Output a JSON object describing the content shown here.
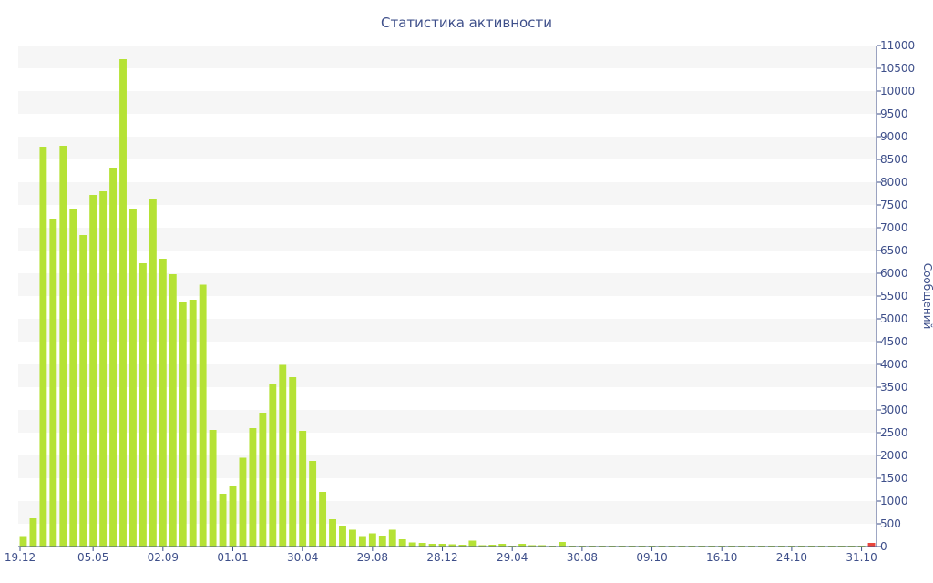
{
  "chart_data": {
    "type": "bar",
    "title": "Статистика активности",
    "xlabel": "",
    "ylabel": "Сообщений",
    "ylim": [
      0,
      11000
    ],
    "y_ticks": [
      0,
      500,
      1000,
      1500,
      2000,
      2500,
      3000,
      3500,
      4000,
      4500,
      5000,
      5500,
      6000,
      6500,
      7000,
      7500,
      8000,
      8500,
      9000,
      9500,
      10000,
      10500,
      11000
    ],
    "x_ticks": [
      {
        "label": "19.12",
        "index": 0
      },
      {
        "label": "05.05",
        "index": 7
      },
      {
        "label": "02.09",
        "index": 14
      },
      {
        "label": "01.01",
        "index": 21
      },
      {
        "label": "30.04",
        "index": 28
      },
      {
        "label": "29.08",
        "index": 35
      },
      {
        "label": "28.12",
        "index": 42
      },
      {
        "label": "29.04",
        "index": 49
      },
      {
        "label": "30.08",
        "index": 56
      },
      {
        "label": "09.10",
        "index": 63
      },
      {
        "label": "16.10",
        "index": 70
      },
      {
        "label": "24.10",
        "index": 77
      },
      {
        "label": "31.10",
        "index": 84
      }
    ],
    "grid": true,
    "grid_style": "alternating horizontal bands",
    "y_axis_position": "right",
    "legend": "none",
    "bar_color": "#b5e235",
    "highlight_color": "#e8453c",
    "band_color": "#f6f6f6",
    "axis_color": "#3e4f8a",
    "values": [
      230,
      620,
      8780,
      7200,
      8800,
      7420,
      6840,
      7720,
      7800,
      8320,
      10700,
      7420,
      6220,
      7640,
      6320,
      5980,
      5360,
      5420,
      5750,
      2560,
      1160,
      1320,
      1950,
      2600,
      2940,
      3560,
      3990,
      3720,
      2540,
      1880,
      1200,
      600,
      460,
      370,
      230,
      290,
      240,
      370,
      160,
      90,
      80,
      60,
      60,
      50,
      40,
      130,
      30,
      40,
      60,
      20,
      60,
      30,
      30,
      20,
      100,
      20,
      20,
      20,
      20,
      20,
      20,
      20,
      20,
      20,
      20,
      20,
      20,
      20,
      20,
      20,
      20,
      20,
      20,
      20,
      20,
      20,
      20,
      20,
      20,
      20,
      20,
      20,
      20,
      20,
      20,
      80
    ],
    "highlight_index": 85
  }
}
